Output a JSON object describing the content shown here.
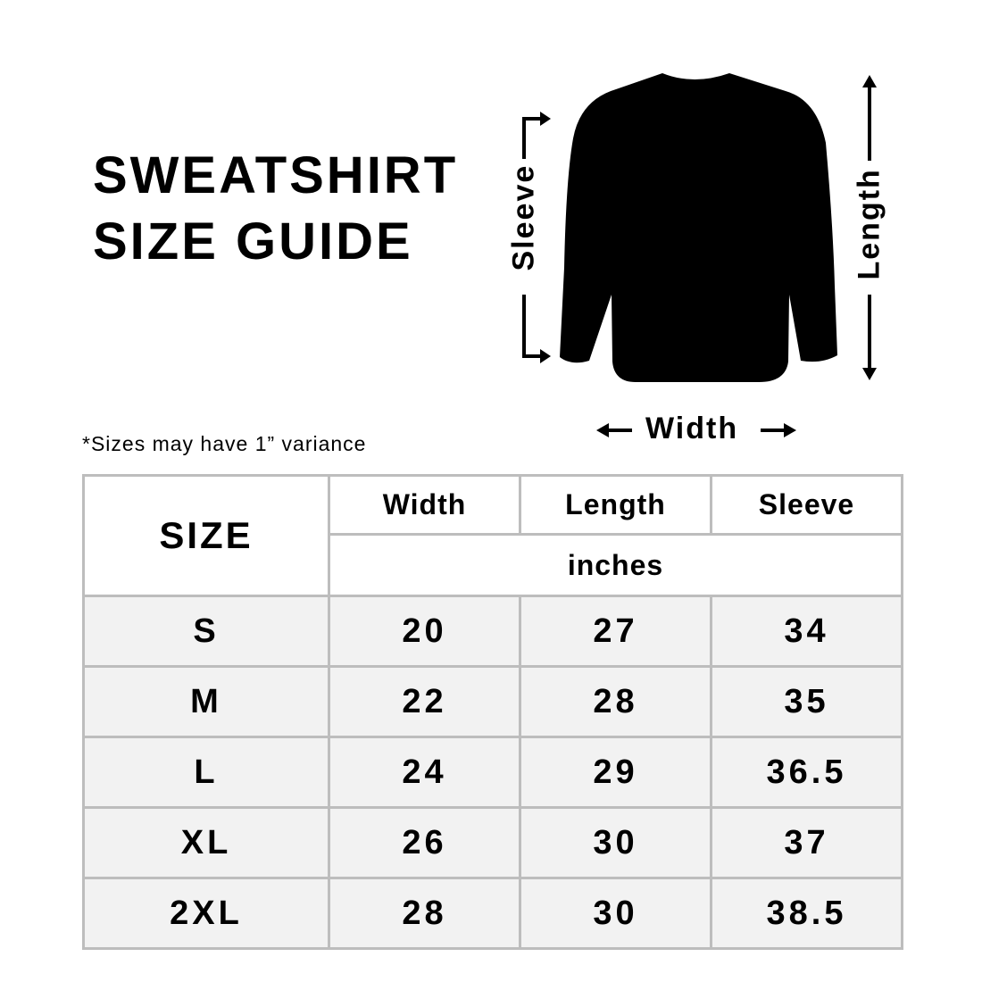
{
  "title": {
    "line1": "SWEATSHIRT",
    "line2": "SIZE GUIDE"
  },
  "note": "*Sizes may have 1” variance",
  "diagram": {
    "sleeve_label": "Sleeve",
    "length_label": "Length",
    "width_label": "Width",
    "garment_color": "#000000"
  },
  "table": {
    "size_header": "SIZE",
    "columns": [
      "Width",
      "Length",
      "Sleeve"
    ],
    "unit": "inches",
    "rows": [
      {
        "size": "S",
        "width": "20",
        "length": "27",
        "sleeve": "34"
      },
      {
        "size": "M",
        "width": "22",
        "length": "28",
        "sleeve": "35"
      },
      {
        "size": "L",
        "width": "24",
        "length": "29",
        "sleeve": "36.5"
      },
      {
        "size": "XL",
        "width": "26",
        "length": "30",
        "sleeve": "37"
      },
      {
        "size": "2XL",
        "width": "28",
        "length": "30",
        "sleeve": "38.5"
      }
    ]
  }
}
